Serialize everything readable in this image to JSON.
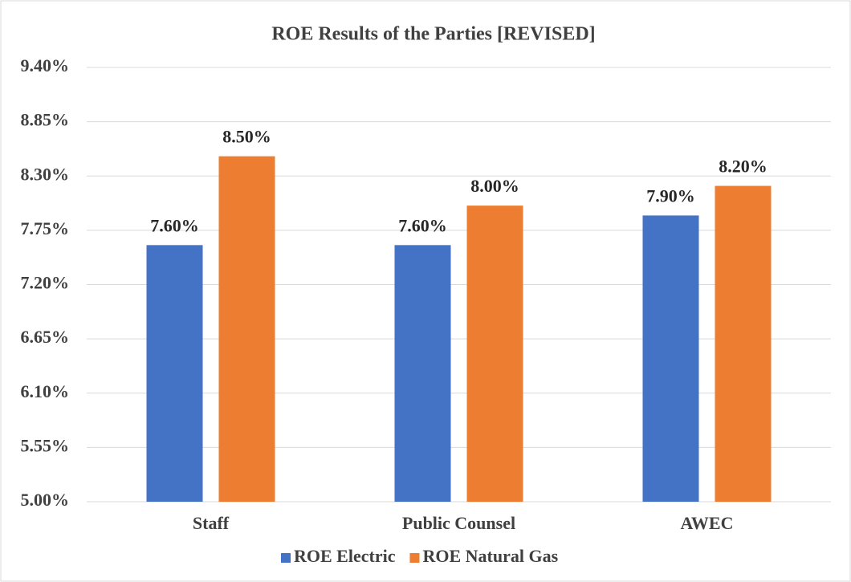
{
  "chart_data": {
    "type": "bar",
    "title": "ROE Results of the Parties [REVISED]",
    "categories": [
      "Staff",
      "Public Counsel",
      "AWEC"
    ],
    "series": [
      {
        "name": "ROE Electric",
        "color": "#4472c4",
        "values": [
          7.6,
          7.6,
          7.9
        ],
        "value_labels": [
          "7.60%",
          "7.60%",
          "7.90%"
        ]
      },
      {
        "name": "ROE Natural Gas",
        "color": "#ed7d31",
        "values": [
          8.5,
          8.0,
          8.2
        ],
        "value_labels": [
          "8.50%",
          "8.00%",
          "8.20%"
        ]
      }
    ],
    "ylim": [
      5,
      9.4
    ],
    "yticks": [
      {
        "value": 5,
        "label": "5.00%"
      },
      {
        "value": 5.55,
        "label": "5.55%"
      },
      {
        "value": 6.1,
        "label": "6.10%"
      },
      {
        "value": 6.65,
        "label": "6.65%"
      },
      {
        "value": 7.2,
        "label": "7.20%"
      },
      {
        "value": 7.75,
        "label": "7.75%"
      },
      {
        "value": 8.3,
        "label": "8.30%"
      },
      {
        "value": 8.85,
        "label": "8.85%"
      },
      {
        "value": 9.4,
        "label": "9.40%"
      }
    ],
    "grid": true,
    "legend": "bottom"
  }
}
